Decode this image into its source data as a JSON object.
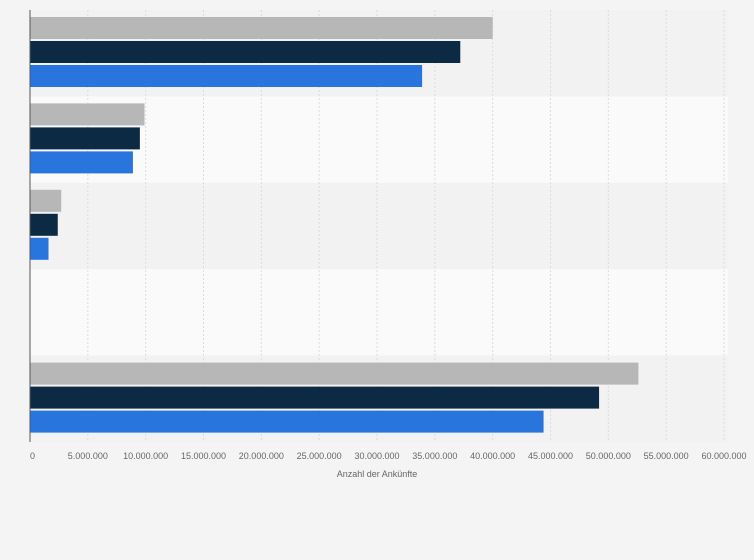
{
  "chart_data": {
    "type": "bar",
    "orientation": "horizontal",
    "categories": [
      "",
      "",
      "",
      "",
      ""
    ],
    "series": [
      {
        "values": [
          40000000,
          9900000,
          2700000,
          0,
          52600000
        ],
        "color": "#b7b7b7"
      },
      {
        "values": [
          37200000,
          9500000,
          2400000,
          0,
          49200000
        ],
        "color": "#0d2a45"
      },
      {
        "values": [
          33900000,
          8900000,
          1600000,
          0,
          44400000
        ],
        "color": "#2876dd"
      }
    ],
    "xlim": [
      0,
      60000000
    ],
    "x_ticks": [
      0,
      5000000,
      10000000,
      15000000,
      20000000,
      25000000,
      30000000,
      35000000,
      40000000,
      45000000,
      50000000,
      55000000,
      60000000
    ],
    "x_tick_labels": [
      "0",
      "5.000.000",
      "10.000.000",
      "15.000.000",
      "20.000.000",
      "25.000.000",
      "30.000.000",
      "35.000.000",
      "40.000.000",
      "45.000.000",
      "50.000.000",
      "55.000.000",
      "60.000.000"
    ],
    "xlabel": "Anzahl der Ankünfte",
    "ylabel": "",
    "title": "",
    "grid": true,
    "legend": "none"
  }
}
